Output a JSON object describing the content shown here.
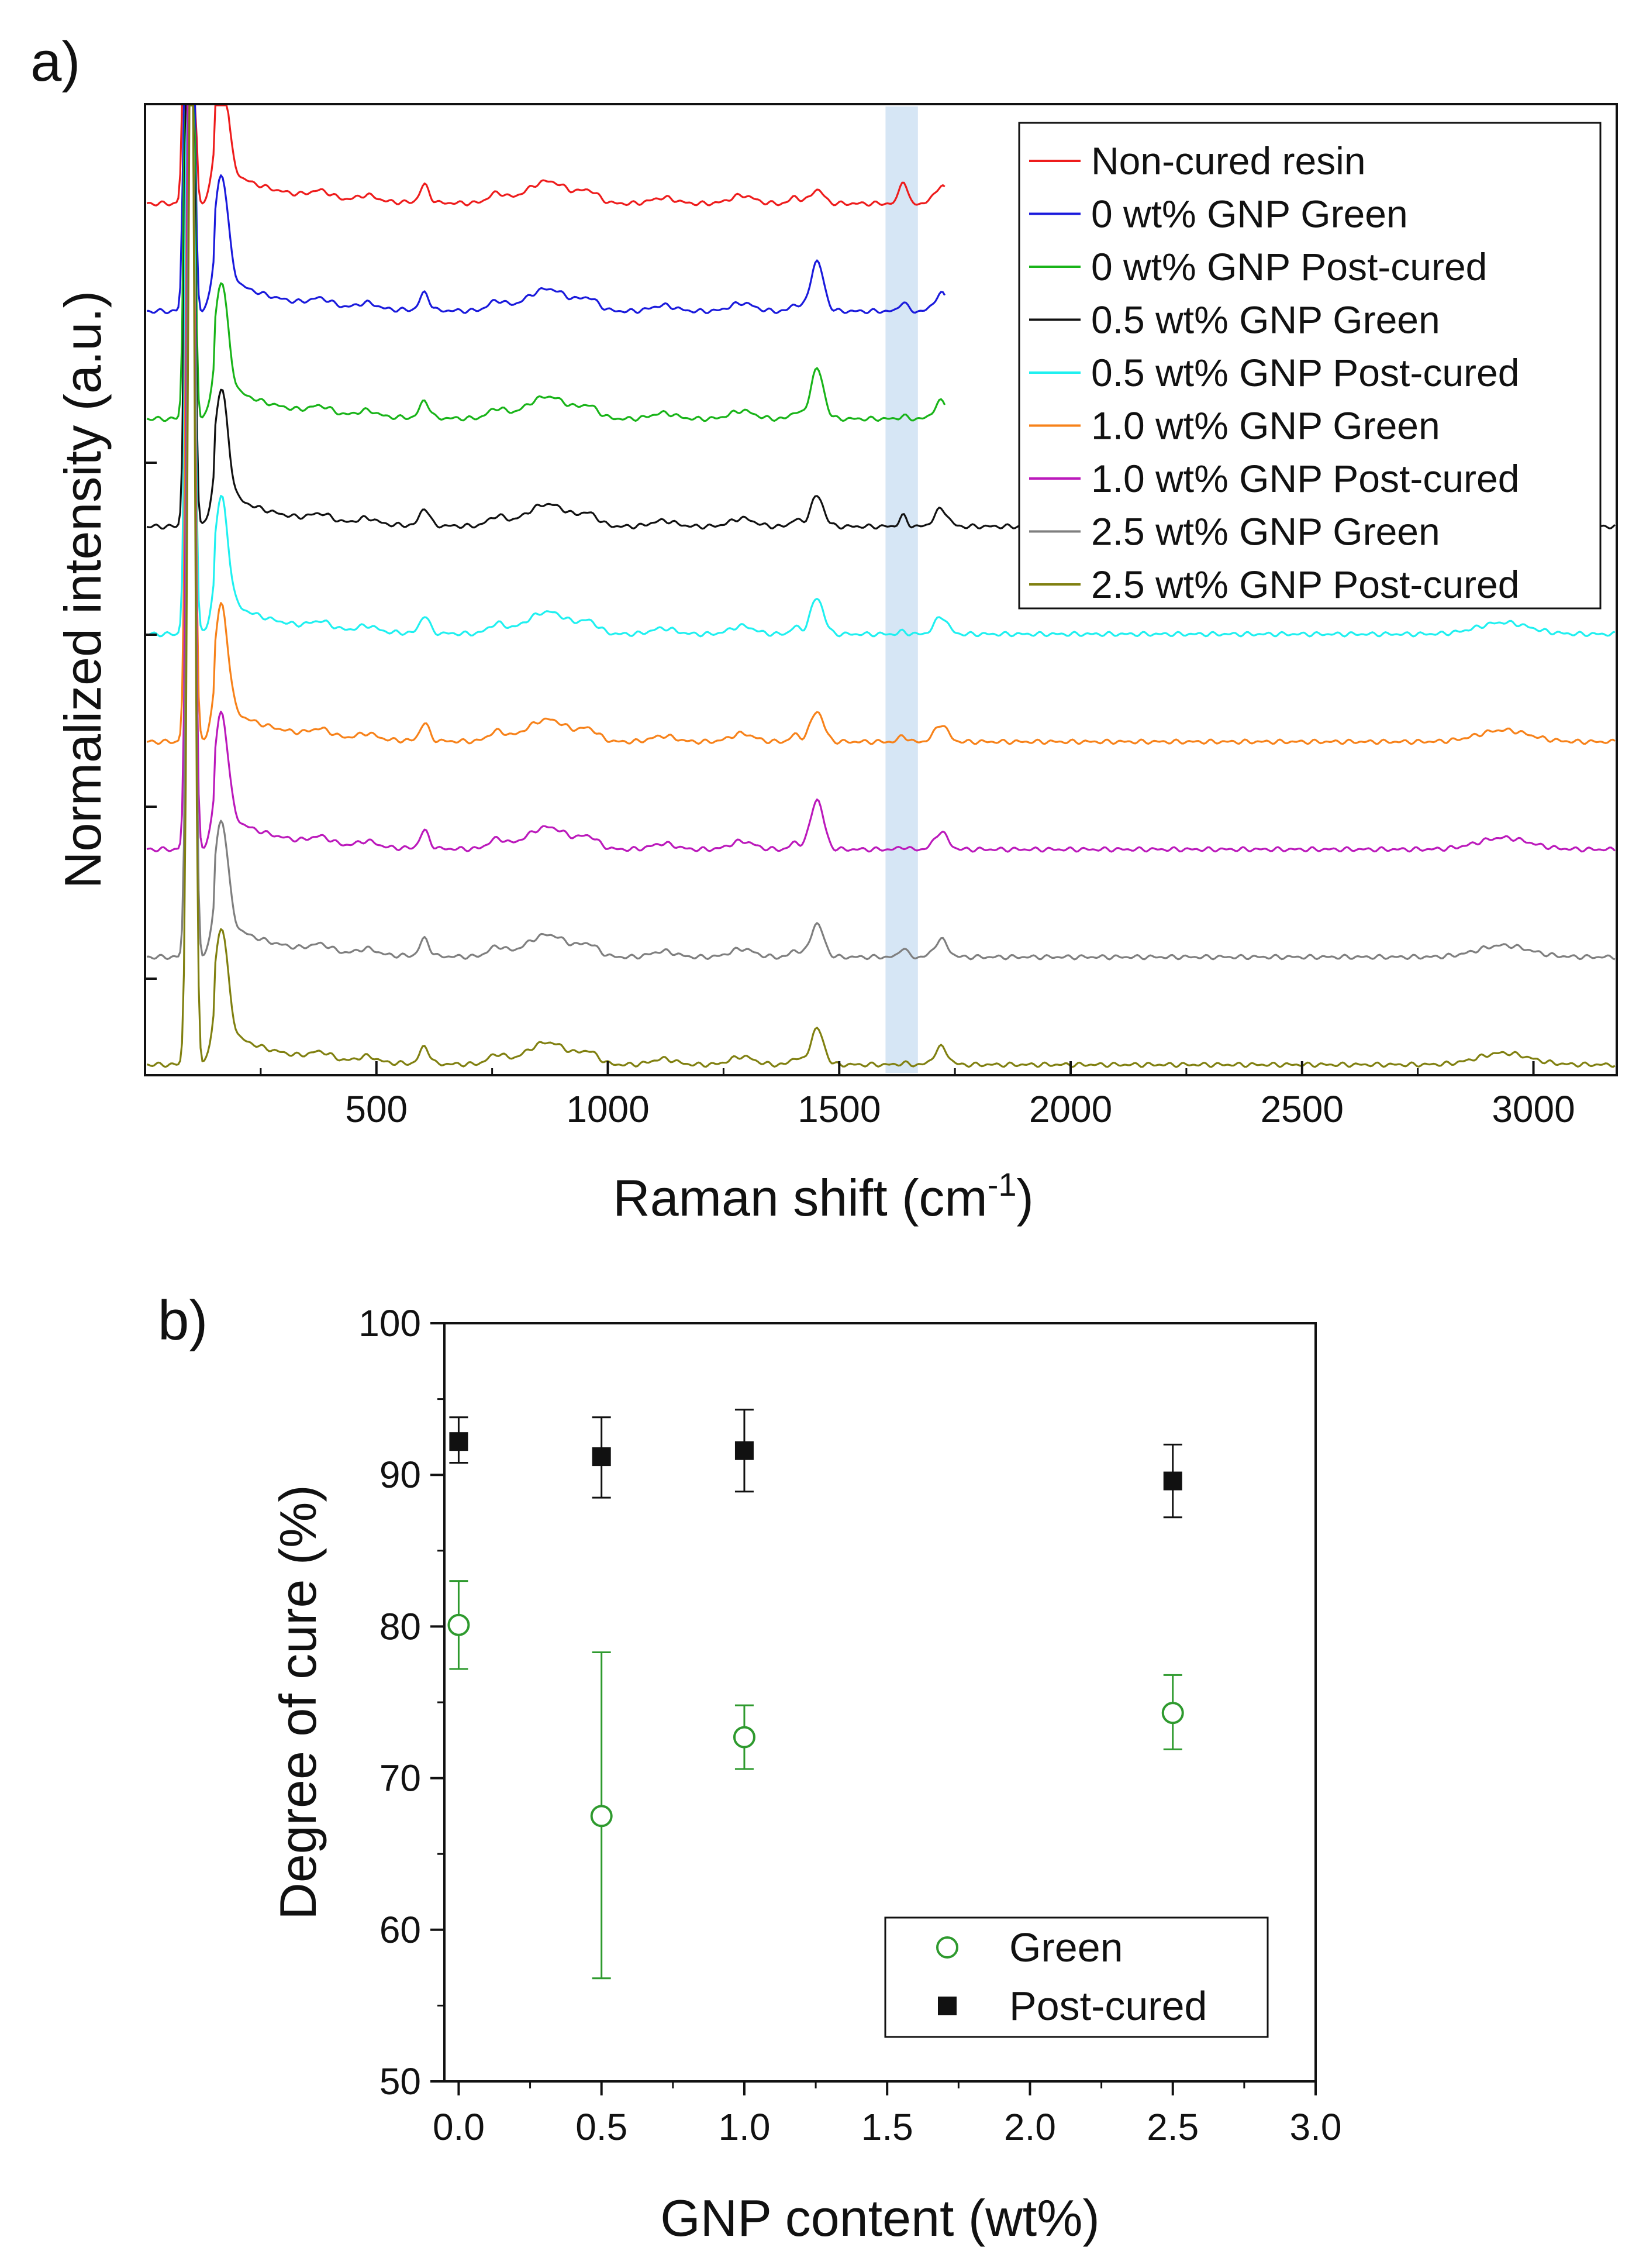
{
  "chart_data": [
    {
      "type": "line",
      "panel_label": "a)",
      "xlabel": "Raman shift (cm",
      "xlabel_sup": "-1",
      "xlabel_end": ")",
      "ylabel": "Normalized intensity (a.u.)",
      "xlim": [
        0,
        3180
      ],
      "xticks": [
        500,
        1000,
        1500,
        2000,
        2500,
        3000
      ],
      "highlight_band": [
        1600,
        1670
      ],
      "legend_position": "top-right",
      "y_axis_ticks": "unlabeled",
      "series": [
        {
          "name": "Non-cured resin",
          "color": "#ee1c1c",
          "offset": 8,
          "c1640": 0.45,
          "c1450": 0.25,
          "tail_end": 1730
        },
        {
          "name": "0 wt% GNP Green",
          "color": "#1a1adc",
          "offset": 7,
          "c1640": 0.18,
          "c1450": 0.9,
          "tail_end": 1730
        },
        {
          "name": "0 wt% GNP Post-cured",
          "color": "#19b419",
          "offset": 6,
          "c1640": 0.05,
          "c1450": 0.9,
          "tail_end": 1730
        },
        {
          "name": "0.5 wt% GNP Green",
          "color": "#111111",
          "offset": 5,
          "c1640": 0.2,
          "c1450": 0.55,
          "tail_end": 3180
        },
        {
          "name": "0.5 wt% GNP Post-cured",
          "color": "#1ff0f0",
          "offset": 4,
          "c1640": 0.05,
          "c1450": 0.65,
          "tail_end": 3180
        },
        {
          "name": "1.0 wt% GNP Green",
          "color": "#f7821a",
          "offset": 3,
          "c1640": 0.12,
          "c1450": 0.55,
          "tail_end": 3180
        },
        {
          "name": "1.0 wt% GNP Post-cured",
          "color": "#bb19bb",
          "offset": 2,
          "c1640": 0.05,
          "c1450": 0.9,
          "tail_end": 3180
        },
        {
          "name": "2.5 wt% GNP Green",
          "color": "#7f7f7f",
          "offset": 1,
          "c1640": 0.18,
          "c1450": 0.6,
          "tail_end": 3180
        },
        {
          "name": "2.5 wt% GNP Post-cured",
          "color": "#808010",
          "offset": 0,
          "c1640": 0.03,
          "c1450": 0.65,
          "tail_end": 3180
        }
      ]
    },
    {
      "type": "scatter",
      "panel_label": "b)",
      "xlabel": "GNP content (wt%)",
      "ylabel": "Degree of cure (%)",
      "xlim": [
        -0.05,
        3.0
      ],
      "ylim": [
        50,
        100
      ],
      "xticks": [
        0.0,
        0.5,
        1.0,
        1.5,
        2.0,
        2.5,
        3.0
      ],
      "xtick_labels": [
        "0.0",
        "0.5",
        "1.0",
        "1.5",
        "2.0",
        "2.5",
        "3.0"
      ],
      "yticks": [
        50,
        60,
        70,
        80,
        90,
        100
      ],
      "ytick_labels": [
        "50",
        "60",
        "70",
        "80",
        "90",
        "100"
      ],
      "legend_position": "bottom-right",
      "series": [
        {
          "name": "Green",
          "marker": "open-circle",
          "color": "#2e9a2e",
          "x": [
            0.0,
            0.5,
            1.0,
            2.5
          ],
          "y": [
            80.1,
            67.5,
            72.7,
            74.3
          ],
          "yerr_low": [
            77.2,
            56.8,
            70.6,
            71.9
          ],
          "yerr_high": [
            83.0,
            78.3,
            74.8,
            76.8
          ]
        },
        {
          "name": "Post-cured",
          "marker": "filled-square",
          "color": "#111111",
          "x": [
            0.0,
            0.5,
            1.0,
            2.5
          ],
          "y": [
            92.2,
            91.2,
            91.6,
            89.6
          ],
          "yerr_low": [
            90.8,
            88.5,
            88.9,
            87.2
          ],
          "yerr_high": [
            93.8,
            93.8,
            94.3,
            92.0
          ]
        }
      ]
    }
  ]
}
